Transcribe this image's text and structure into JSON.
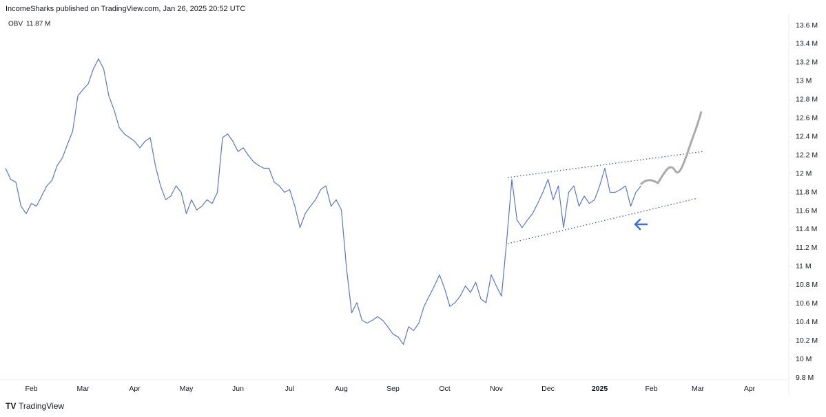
{
  "header": "IncomeSharks published on TradingView.com, Jan 26, 2025 20:52 UTC",
  "footer": "TradingView",
  "chart_data": {
    "type": "line",
    "categories": [
      null,
      null,
      null,
      null,
      null,
      "Feb",
      null,
      null,
      null,
      null,
      null,
      null,
      null,
      null,
      null,
      "Mar",
      null,
      null,
      null,
      null,
      null,
      null,
      null,
      null,
      null,
      "Apr",
      null,
      null,
      null,
      null,
      null,
      null,
      null,
      null,
      null,
      "May",
      null,
      null,
      null,
      null,
      null,
      null,
      null,
      null,
      null,
      "Jun",
      null,
      null,
      null,
      null,
      null,
      null,
      null,
      null,
      null,
      "Jul",
      null,
      null,
      null,
      null,
      null,
      null,
      null,
      null,
      null,
      "Aug",
      null,
      null,
      null,
      null,
      null,
      null,
      null,
      null,
      null,
      "Sep",
      null,
      null,
      null,
      null,
      null,
      null,
      null,
      null,
      null,
      "Oct",
      null,
      null,
      null,
      null,
      null,
      null,
      null,
      null,
      null,
      "Nov",
      null,
      null,
      null,
      null,
      null,
      null,
      null,
      null,
      null,
      "Dec",
      null,
      null,
      null,
      null,
      null,
      null,
      null,
      null,
      null,
      "2025",
      null,
      null,
      null,
      null,
      null,
      null,
      null,
      null,
      null,
      "Feb",
      null,
      null,
      null,
      null,
      null,
      null,
      null,
      null,
      "Mar",
      null,
      null,
      null,
      null,
      null,
      null,
      null,
      null,
      null,
      "Apr"
    ],
    "series": [
      {
        "name": "OBV",
        "last_label": "11.87 M",
        "color": "#5a74d4",
        "values": [
          12.06,
          11.94,
          11.91,
          11.65,
          11.57,
          11.68,
          11.65,
          11.76,
          11.87,
          11.93,
          12.09,
          12.17,
          12.32,
          12.46,
          12.84,
          12.91,
          12.97,
          13.13,
          13.24,
          13.13,
          12.84,
          12.69,
          12.5,
          12.43,
          12.39,
          12.35,
          12.28,
          12.35,
          12.39,
          12.09,
          11.87,
          11.72,
          11.76,
          11.87,
          11.8,
          11.57,
          11.72,
          11.61,
          11.65,
          11.72,
          11.68,
          11.8,
          12.39,
          12.43,
          12.35,
          12.24,
          12.28,
          12.2,
          12.13,
          12.09,
          12.06,
          12.06,
          11.91,
          11.87,
          11.8,
          11.83,
          11.65,
          11.42,
          11.57,
          11.65,
          11.72,
          11.83,
          11.87,
          11.65,
          11.72,
          11.61,
          10.98,
          10.5,
          10.61,
          10.42,
          10.39,
          10.42,
          10.46,
          10.42,
          10.35,
          10.27,
          10.24,
          10.16,
          10.35,
          10.31,
          10.39,
          10.57,
          10.68,
          10.79,
          10.91,
          10.76,
          10.57,
          10.61,
          10.68,
          10.79,
          10.72,
          10.83,
          10.65,
          10.61,
          10.91,
          10.79,
          10.68,
          11.28,
          11.94,
          11.5,
          11.42,
          11.5,
          11.57,
          11.68,
          11.8,
          11.94,
          11.72,
          11.87,
          11.42,
          11.8,
          11.87,
          11.65,
          11.76,
          11.68,
          11.72,
          11.87,
          12.06,
          11.8,
          11.8,
          11.83,
          11.87,
          11.65,
          11.8,
          11.87,
          null,
          null,
          null,
          null,
          null,
          null,
          null,
          null,
          null,
          null,
          null,
          null,
          null,
          null,
          null,
          null,
          null,
          null,
          null,
          null,
          null
        ]
      }
    ],
    "ylim": [
      9.8,
      13.6
    ],
    "yticks": [
      {
        "value": 13.6,
        "label": "13.6 M"
      },
      {
        "value": 13.4,
        "label": "13.4 M"
      },
      {
        "value": 13.2,
        "label": "13.2 M"
      },
      {
        "value": 13,
        "label": "13 M"
      },
      {
        "value": 12.8,
        "label": "12.8 M"
      },
      {
        "value": 12.6,
        "label": "12.6 M"
      },
      {
        "value": 12.4,
        "label": "12.4 M"
      },
      {
        "value": 12.2,
        "label": "12.2 M"
      },
      {
        "value": 12,
        "label": "12 M"
      },
      {
        "value": 11.8,
        "label": "11.8 M"
      },
      {
        "value": 11.6,
        "label": "11.6 M"
      },
      {
        "value": 11.4,
        "label": "11.4 M"
      },
      {
        "value": 11.2,
        "label": "11.2 M"
      },
      {
        "value": 11,
        "label": "11 M"
      },
      {
        "value": 10.8,
        "label": "10.8 M"
      },
      {
        "value": 10.6,
        "label": "10.6 M"
      },
      {
        "value": 10.4,
        "label": "10.4 M"
      },
      {
        "value": 10.2,
        "label": "10.2 M"
      },
      {
        "value": 10,
        "label": "10 M"
      },
      {
        "value": 9.8,
        "label": "9.8 M"
      }
    ],
    "grid": false
  }
}
